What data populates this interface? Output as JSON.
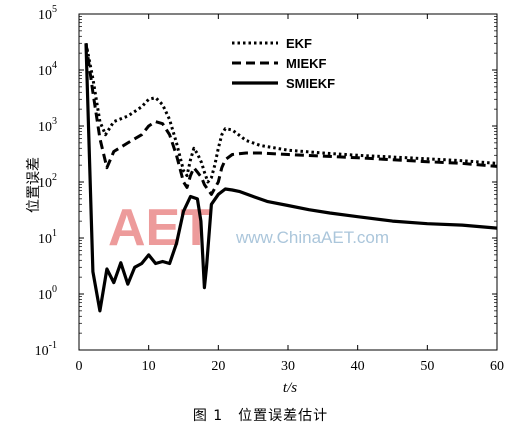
{
  "caption": "图 1　位置误差估计",
  "watermark": {
    "logo_text": "AET",
    "site_text": "www.ChinaAET.com",
    "logo_color": "#e87a7a",
    "site_color": "#8fb3cf"
  },
  "chart_data": {
    "type": "line",
    "title": "",
    "xlabel": "t/s",
    "ylabel": "位置误差",
    "xlim": [
      0,
      60
    ],
    "ylim_log10": [
      -1,
      5
    ],
    "yscale": "log",
    "grid": false,
    "legend_position": "top-right",
    "x_ticks": [
      "0",
      "10",
      "20",
      "30",
      "40",
      "50",
      "60"
    ],
    "y_ticks": [
      {
        "base": "10",
        "exp": "-1"
      },
      {
        "base": "10",
        "exp": "0"
      },
      {
        "base": "10",
        "exp": "1"
      },
      {
        "base": "10",
        "exp": "2"
      },
      {
        "base": "10",
        "exp": "3"
      },
      {
        "base": "10",
        "exp": "4"
      },
      {
        "base": "10",
        "exp": "5"
      }
    ],
    "series": [
      {
        "name": "EKF",
        "style": "dotted",
        "x": [
          1,
          2,
          3,
          3.8,
          5,
          7,
          9,
          10,
          11,
          12,
          13,
          14,
          15,
          15.5,
          16,
          16.5,
          17,
          17.6,
          18,
          18.5,
          19,
          19.5,
          20,
          20.5,
          21,
          22,
          24,
          26,
          30,
          35,
          40,
          45,
          50,
          55,
          60
        ],
        "y": [
          30000,
          7000,
          1200,
          700,
          1200,
          1500,
          2200,
          3000,
          3200,
          2400,
          1300,
          500,
          160,
          130,
          250,
          400,
          320,
          220,
          150,
          100,
          120,
          200,
          400,
          700,
          900,
          850,
          550,
          450,
          370,
          330,
          300,
          280,
          260,
          240,
          215
        ]
      },
      {
        "name": "MIEKF",
        "style": "dashed",
        "x": [
          1,
          2,
          3,
          4,
          5,
          7,
          9,
          10,
          11,
          12,
          13,
          14,
          15,
          15.5,
          16,
          16.5,
          17,
          17.6,
          18,
          19,
          20,
          20.5,
          21,
          22,
          24,
          26,
          30,
          35,
          40,
          45,
          50,
          55,
          60
        ],
        "y": [
          30000,
          4000,
          600,
          180,
          350,
          500,
          700,
          1000,
          1200,
          1100,
          700,
          300,
          100,
          80,
          130,
          180,
          150,
          120,
          90,
          60,
          100,
          180,
          250,
          310,
          330,
          330,
          310,
          290,
          270,
          250,
          230,
          215,
          190
        ]
      },
      {
        "name": "SMIEKF",
        "style": "solid",
        "x": [
          1,
          2,
          3,
          4,
          5,
          6,
          7,
          8,
          9,
          10,
          11,
          12,
          13,
          14,
          15,
          16,
          17,
          17.5,
          18,
          18.3,
          19,
          20,
          21,
          22,
          23,
          25,
          27,
          30,
          33,
          36,
          40,
          45,
          50,
          55,
          60
        ],
        "y": [
          30000,
          2.5,
          0.5,
          2.8,
          1.6,
          3.6,
          1.5,
          3.0,
          3.5,
          5.0,
          3.5,
          3.8,
          3.5,
          8,
          30,
          55,
          50,
          20,
          1.3,
          3,
          40,
          60,
          75,
          72,
          68,
          55,
          45,
          38,
          32,
          28,
          24,
          20,
          18,
          17,
          15
        ]
      }
    ]
  }
}
